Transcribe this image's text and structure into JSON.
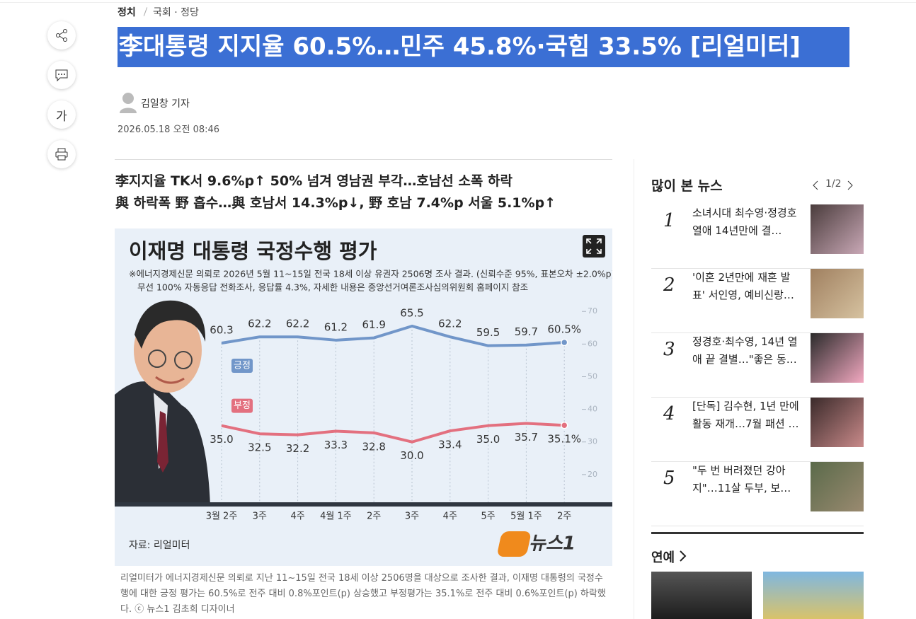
{
  "breadcrumb": [
    "정치",
    "국회 · 정당"
  ],
  "article": {
    "headline": "李대통령 지지율 60.5%…민주 45.8%·국힘 33.5% [리얼미터]",
    "author": "김일창 기자",
    "date": "2026.05.18 오전 08:46",
    "font_button": "가",
    "subheadlines": [
      "李지지율 TK서 9.6%p↑ 50% 넘겨 영남권 부각…호남선 소폭 하락",
      "與 하락폭 野 흡수…與 호남서 14.3%p↓, 野 호남 7.4%p 서울 5.1%p↑"
    ],
    "caption": "리얼미터가 에너지경제신문 의뢰로 지난 11~15일 전국 18세 이상 2506명을 대상으로 조사한 결과, 이재명 대통령의 국정수행에 대한 긍정 평가는 60.5%로 전주 대비 0.8%포인트(p) 상승했고 부정평가는 35.1%로 전주 대비 0.6%포인트(p) 하락했다. ⓒ 뉴스1 김초희 디자이너"
  },
  "chart_data": {
    "type": "line",
    "title": "이재명 대통령 국정수행 평가",
    "notes": [
      "※에너지경제신문 의뢰로 2026년 5월 11~15일 전국 18세 이상 유권자 2506명 조사 결과. (신뢰수준 95%, 표본오차 ±2.0%p)",
      "무선 100% 자동응답 전화조사, 응답률 4.3%, 자세한 내용은 중앙선거여론조사심의위원회 홈페이지 참조"
    ],
    "categories": [
      "3월 2주",
      "3주",
      "4주",
      "4월 1주",
      "2주",
      "3주",
      "4주",
      "5주",
      "5월 1주",
      "2주"
    ],
    "series": [
      {
        "name": "긍정",
        "color": "#7196c9",
        "values": [
          60.3,
          62.2,
          62.2,
          61.2,
          61.9,
          65.5,
          62.2,
          59.5,
          59.7,
          60.5
        ],
        "value_labels": [
          "60.3",
          "62.2",
          "62.2",
          "61.2",
          "61.9",
          "65.5",
          "62.2",
          "59.5",
          "59.7",
          "60.5%"
        ]
      },
      {
        "name": "부정",
        "color": "#e3707f",
        "values": [
          35.0,
          32.5,
          32.2,
          33.3,
          32.8,
          30.0,
          33.4,
          35.0,
          35.7,
          35.1
        ],
        "value_labels": [
          "35.0",
          "32.5",
          "32.2",
          "33.3",
          "32.8",
          "30.0",
          "33.4",
          "35.0",
          "35.7",
          "35.1%"
        ]
      }
    ],
    "ylim": [
      10,
      72
    ],
    "yticks": [
      70,
      60,
      50,
      40,
      30,
      20
    ],
    "source": "자료: 리얼미터",
    "logo": "뉴스1"
  },
  "sidebar": {
    "title": "많이 본 뉴스",
    "pagination": "1/2",
    "items": [
      {
        "rank": 1,
        "title": "소녀시대 최수영·정경호 열애 14년만에 결…"
      },
      {
        "rank": 2,
        "title": "'이혼 2년만에 재혼 발표' 서인영, 예비신랑…"
      },
      {
        "rank": 3,
        "title": "정경호·최수영, 14년 열애 끝 결별…\"좋은 동…"
      },
      {
        "rank": 4,
        "title": "[단독] 김수현, 1년 만에 활동 재개…7월 패션 …"
      },
      {
        "rank": 5,
        "title": "\"두 번 버려졌던 강아지\"…11살 두부, 보…"
      }
    ],
    "section": "연예"
  }
}
